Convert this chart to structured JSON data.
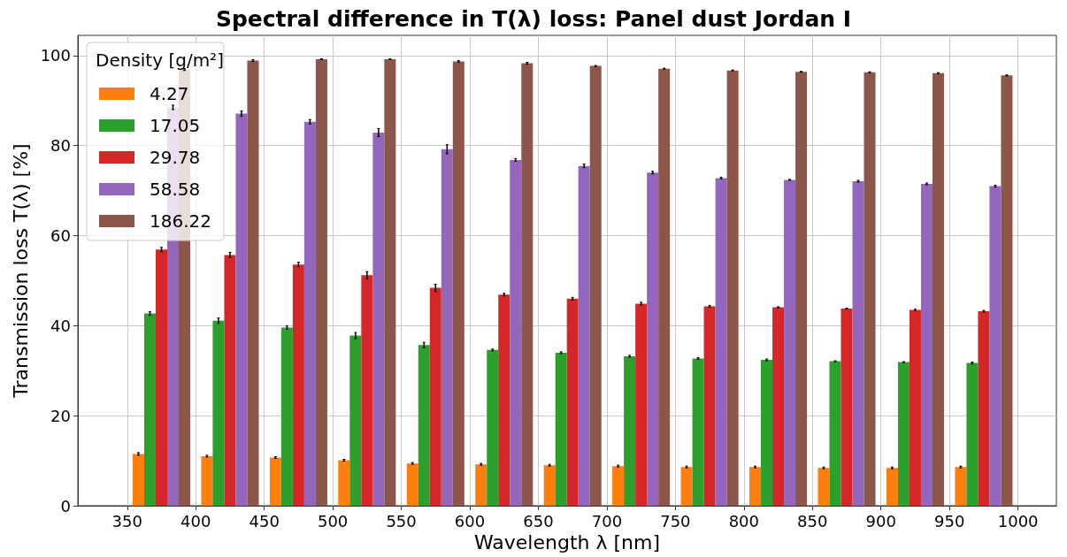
{
  "chart_data": {
    "type": "bar",
    "title": "Spectral difference in T(λ) loss: Panel dust Jordan I",
    "xlabel": "Wavelength λ [nm]",
    "ylabel": "Transmission loss T(λ) [%]",
    "legend_title": "Density [g/m²]",
    "x": [
      375,
      425,
      475,
      525,
      575,
      625,
      675,
      725,
      775,
      825,
      875,
      925,
      975
    ],
    "series": [
      {
        "name": "4.27",
        "color": "#ff7f0e",
        "values": [
          11.5,
          11.0,
          10.7,
          10.1,
          9.4,
          9.2,
          9.0,
          8.8,
          8.6,
          8.6,
          8.4,
          8.4,
          8.6
        ],
        "errors": [
          0.3,
          0.2,
          0.2,
          0.2,
          0.2,
          0.2,
          0.2,
          0.2,
          0.2,
          0.2,
          0.2,
          0.2,
          0.2
        ]
      },
      {
        "name": "17.05",
        "color": "#2ca02c",
        "values": [
          42.7,
          41.1,
          39.6,
          37.8,
          35.7,
          34.6,
          34.0,
          33.2,
          32.7,
          32.4,
          32.1,
          31.9,
          31.7
        ],
        "errors": [
          0.4,
          0.6,
          0.4,
          0.7,
          0.6,
          0.2,
          0.2,
          0.2,
          0.2,
          0.2,
          0.1,
          0.1,
          0.2
        ]
      },
      {
        "name": "29.78",
        "color": "#d62728",
        "values": [
          56.9,
          55.7,
          53.6,
          51.2,
          48.4,
          46.9,
          46.0,
          44.9,
          44.3,
          44.1,
          43.8,
          43.5,
          43.2
        ],
        "errors": [
          0.5,
          0.6,
          0.5,
          0.8,
          0.8,
          0.3,
          0.3,
          0.3,
          0.2,
          0.1,
          0.1,
          0.2,
          0.2
        ]
      },
      {
        "name": "58.58",
        "color": "#9467bd",
        "values": [
          88.5,
          87.1,
          85.3,
          82.9,
          79.2,
          76.8,
          75.5,
          74.0,
          72.8,
          72.4,
          72.1,
          71.5,
          71.0
        ],
        "errors": [
          0.5,
          0.6,
          0.5,
          0.9,
          1.0,
          0.3,
          0.4,
          0.3,
          0.2,
          0.1,
          0.2,
          0.2,
          0.2
        ]
      },
      {
        "name": "186.22",
        "color": "#8c564b",
        "values": [
          96.9,
          98.9,
          99.2,
          99.2,
          98.7,
          98.3,
          97.7,
          97.1,
          96.7,
          96.4,
          96.3,
          96.1,
          95.6
        ],
        "errors": [
          0.2,
          0.2,
          0.1,
          0.1,
          0.2,
          0.2,
          0.1,
          0.1,
          0.1,
          0.1,
          0.1,
          0.1,
          0.1
        ]
      }
    ],
    "xlim": [
      314,
      1028
    ],
    "xticks": [
      350,
      400,
      450,
      500,
      550,
      600,
      650,
      700,
      750,
      800,
      850,
      900,
      950,
      1000
    ],
    "ylim": [
      0,
      104.5
    ],
    "yticks": [
      0,
      20,
      40,
      60,
      80,
      100
    ],
    "grid": true,
    "legend": "top left"
  }
}
